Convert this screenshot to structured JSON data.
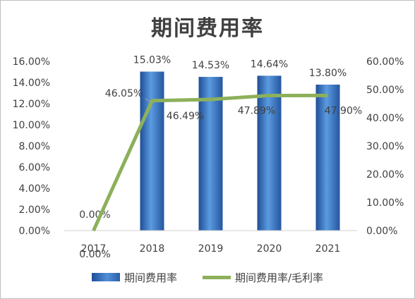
{
  "chart_data": {
    "type": "bar+line",
    "title": "期间费用率",
    "categories": [
      "2017",
      "2018",
      "2019",
      "2020",
      "2021"
    ],
    "y_left": {
      "ylim": [
        0,
        0.16
      ],
      "ticks": [
        "0.00%",
        "2.00%",
        "4.00%",
        "6.00%",
        "8.00%",
        "10.00%",
        "12.00%",
        "14.00%",
        "16.00%"
      ]
    },
    "y_right": {
      "ylim": [
        0,
        0.6
      ],
      "ticks": [
        "0.00%",
        "10.00%",
        "20.00%",
        "30.00%",
        "40.00%",
        "50.00%",
        "60.00%"
      ]
    },
    "series": [
      {
        "name": "期间费用率",
        "type": "bar",
        "axis": "left",
        "values": [
          0.0,
          0.1503,
          0.1453,
          0.1464,
          0.138
        ],
        "labels": [
          "0.00%",
          "15.03%",
          "14.53%",
          "14.64%",
          "13.80%"
        ]
      },
      {
        "name": "期间费用率/毛利率",
        "type": "line",
        "axis": "right",
        "values": [
          0.0,
          0.4605,
          0.4649,
          0.4789,
          0.479
        ],
        "labels": [
          "0.00%",
          "46.05%",
          "46.49%",
          "47.89%",
          "47.90%"
        ]
      }
    ],
    "legend_position": "bottom",
    "grid": false,
    "colors": {
      "bar": "#2e63ad",
      "bar_light": "#5b9be0",
      "line": "#8db05a",
      "text": "#404040"
    }
  }
}
